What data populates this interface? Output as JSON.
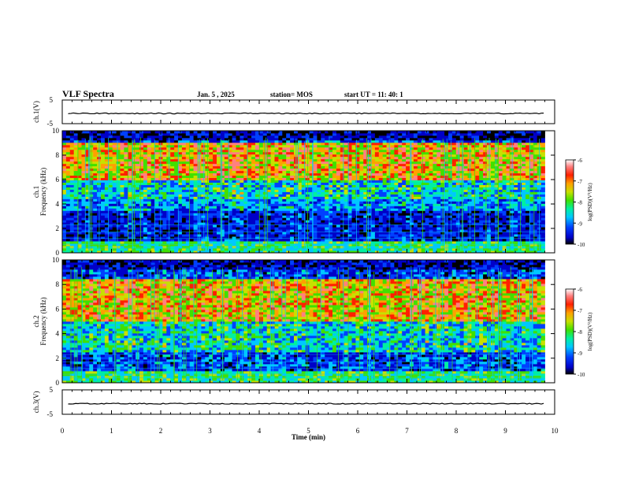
{
  "header": {
    "title": "VLF Spectra",
    "date": "Jan. 5 , 2025",
    "station": "station= MOS",
    "start": "start  UT =   11: 40: 1"
  },
  "colors": {
    "spectrum_scale": [
      "#000000",
      "#0000c8",
      "#0040ff",
      "#00c8ff",
      "#00f0a0",
      "#40e000",
      "#c8e000",
      "#ffa000",
      "#ff2000",
      "#ff8080",
      "#ffffff"
    ]
  },
  "chart_data": [
    {
      "type": "line",
      "name": "ch1-waveform",
      "ylabel": "ch.1(V)",
      "ylim": [
        -5,
        5
      ],
      "yticks": [
        "5",
        "-5"
      ],
      "xlim": [
        0,
        10
      ],
      "trace_level": 0
    },
    {
      "type": "heatmap",
      "name": "ch1-spectrogram",
      "ylabel": "ch.1\nFrequency (kHz)",
      "ylabel_lines": [
        "ch.1",
        "Frequency (kHz)"
      ],
      "ylim": [
        0,
        10
      ],
      "yticks": [
        "0",
        "2",
        "4",
        "6",
        "8",
        "10"
      ],
      "xlim": [
        0,
        9.8
      ],
      "colorbar": {
        "label": "log(PSD)(V²/Hz)",
        "range": [
          -10,
          -6
        ],
        "ticks": [
          "-6",
          "-7",
          "-8",
          "-9",
          "-10"
        ]
      },
      "dominant_band_khz": [
        6,
        9
      ],
      "peak_log_psd": -6.5
    },
    {
      "type": "heatmap",
      "name": "ch2-spectrogram",
      "ylabel": "ch.2\nFrequency (kHz)",
      "ylabel_lines": [
        "ch.2",
        "Frequency (kHz)"
      ],
      "ylim": [
        0,
        10
      ],
      "yticks": [
        "0",
        "2",
        "4",
        "6",
        "8",
        "10"
      ],
      "xlim": [
        0,
        9.8
      ],
      "colorbar": {
        "label": "log(PSD)(V²/Hz)",
        "range": [
          -10,
          -6
        ],
        "ticks": [
          "-6",
          "-7",
          "-8",
          "-9",
          "-10"
        ]
      },
      "dominant_band_khz": [
        5,
        8.5
      ],
      "peak_log_psd": -6.5
    },
    {
      "type": "line",
      "name": "ch3-waveform",
      "ylabel": "ch.3(V)",
      "ylim": [
        -5,
        5
      ],
      "yticks": [
        "5",
        "-5"
      ],
      "xlim": [
        0,
        10
      ],
      "xlabel": "Time (min)",
      "xticks": [
        "0",
        "1",
        "2",
        "3",
        "4",
        "5",
        "6",
        "7",
        "8",
        "9",
        "10"
      ],
      "trace_level": 0
    }
  ]
}
